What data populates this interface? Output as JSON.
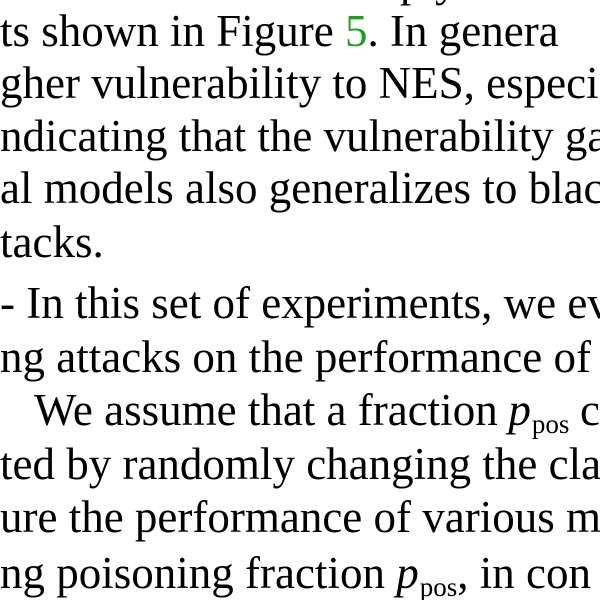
{
  "paragraph1": {
    "line1_a": "ts shown in Figure",
    "line1_ref": "5",
    "line1_b": ".  In genera",
    "line2": "gher vulnerability to NES, especia",
    "line3": "ndicating that the vulnerability ga",
    "line4": "al models also generalizes to blacl",
    "line5": "tacks."
  },
  "paragraph2": {
    "line1": "- In this set of experiments, we eva",
    "line2": "ng attacks on the performance of",
    "line3_a": "We assume that a fraction",
    "line3_var": "p",
    "line3_sub": "pos",
    "line3_b": "c",
    "line4": "ted by randomly changing the cla",
    "line5": "ure the performance of various m",
    "line6_a": "ng poisoning fraction",
    "line6_var": "p",
    "line6_sub": "pos",
    "line6_b": ", in con"
  }
}
